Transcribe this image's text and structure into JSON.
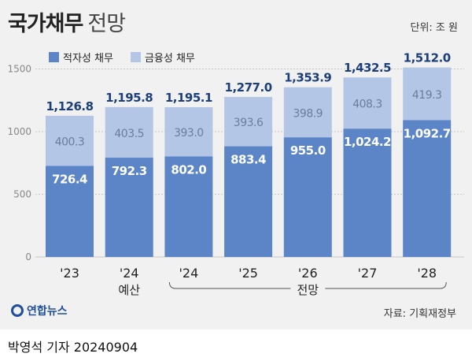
{
  "header": {
    "title_bold": "국가채무",
    "title_rest": "전망",
    "unit": "단위: 조 원"
  },
  "legend": [
    {
      "label": "적자성 채무",
      "color": "#5b85c6"
    },
    {
      "label": "금융성 채무",
      "color": "#b4c6e6"
    }
  ],
  "chart_data": {
    "type": "bar",
    "stacked": true,
    "categories": [
      "'23",
      "'24",
      "'24",
      "'25",
      "'26",
      "'27",
      "'28"
    ],
    "category_sublabels": [
      "",
      "예산",
      "",
      "",
      "",
      "",
      ""
    ],
    "group_label": "전망",
    "series": [
      {
        "name": "적자성 채무",
        "values": [
          726.4,
          792.3,
          802.0,
          883.4,
          955.0,
          1024.2,
          1092.7
        ]
      },
      {
        "name": "금융성 채무",
        "values": [
          400.3,
          403.5,
          393.0,
          393.6,
          398.9,
          408.3,
          419.3
        ]
      }
    ],
    "totals": [
      "1,126.8",
      "1,195.8",
      "1,195.1",
      "1,277.0",
      "1,353.9",
      "1,432.5",
      "1,512.0"
    ],
    "segment_labels": [
      [
        "726.4",
        "792.3",
        "802.0",
        "883.4",
        "955.0",
        "1,024.2",
        "1,092.7"
      ],
      [
        "400.3",
        "403.5",
        "393.0",
        "393.6",
        "398.9",
        "408.3",
        "419.3"
      ]
    ],
    "yticks": [
      "0",
      "500",
      "1000",
      "1500"
    ],
    "ylim": [
      0,
      1512
    ]
  },
  "footer": {
    "source": "자료: 기획재정부",
    "agency": "연합뉴스",
    "byline": "박영석 기자 20240904"
  }
}
